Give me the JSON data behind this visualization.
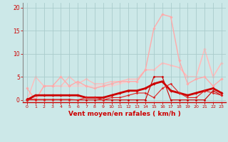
{
  "x": [
    0,
    1,
    2,
    3,
    4,
    5,
    6,
    7,
    8,
    9,
    10,
    11,
    12,
    13,
    14,
    15,
    16,
    17,
    18,
    19,
    20,
    21,
    22,
    23
  ],
  "series": [
    {
      "y": [
        0.0,
        0.0,
        0.0,
        0.0,
        0.0,
        0.0,
        0.0,
        0.5,
        0.5,
        0.0,
        0.5,
        0.5,
        1.0,
        1.5,
        1.5,
        0.5,
        2.5,
        3.5,
        1.5,
        0.5,
        0.5,
        2.0,
        1.5,
        1.0
      ],
      "color": "#dd2222",
      "lw": 0.8,
      "marker": "D",
      "ms": 1.5,
      "zorder": 6
    },
    {
      "y": [
        0.0,
        1.0,
        1.0,
        1.0,
        1.0,
        1.0,
        1.0,
        0.5,
        0.5,
        0.5,
        1.0,
        1.5,
        2.0,
        2.0,
        2.5,
        3.5,
        4.0,
        2.0,
        1.5,
        1.0,
        1.5,
        2.0,
        2.5,
        1.5
      ],
      "color": "#cc0000",
      "lw": 2.0,
      "marker": "D",
      "ms": 1.8,
      "zorder": 5
    },
    {
      "y": [
        0.2,
        0.1,
        0.1,
        0.1,
        0.1,
        0.1,
        0.0,
        0.0,
        0.0,
        0.0,
        0.0,
        0.0,
        0.0,
        0.0,
        0.0,
        5.0,
        5.0,
        0.0,
        0.0,
        0.0,
        0.0,
        0.0,
        2.0,
        1.0
      ],
      "color": "#cc0000",
      "lw": 0.8,
      "marker": "D",
      "ms": 1.5,
      "zorder": 4
    },
    {
      "y": [
        2.5,
        0.0,
        3.0,
        3.0,
        5.0,
        3.0,
        4.0,
        3.0,
        2.5,
        3.0,
        3.5,
        4.0,
        4.0,
        4.0,
        6.5,
        15.5,
        18.5,
        18.0,
        8.5,
        3.5,
        4.5,
        5.0,
        3.0,
        4.5
      ],
      "color": "#ffaaaa",
      "lw": 1.0,
      "marker": "D",
      "ms": 1.8,
      "zorder": 2
    },
    {
      "y": [
        0.0,
        5.0,
        3.0,
        3.0,
        3.0,
        5.0,
        3.5,
        4.5,
        3.5,
        3.5,
        4.0,
        4.0,
        4.5,
        4.5,
        6.5,
        6.5,
        8.0,
        7.5,
        7.0,
        5.0,
        5.0,
        11.0,
        5.0,
        8.0
      ],
      "color": "#ffbbbb",
      "lw": 1.0,
      "marker": "D",
      "ms": 1.8,
      "zorder": 1
    },
    {
      "y": [
        0.0,
        0.0,
        3.0,
        3.0,
        3.0,
        3.0,
        3.0,
        3.0,
        3.0,
        3.0,
        3.0,
        3.5,
        4.0,
        4.0,
        6.5,
        6.5,
        8.0,
        7.5,
        7.0,
        5.0,
        5.0,
        11.0,
        5.0,
        8.0
      ],
      "color": "#ffcccc",
      "lw": 1.0,
      "marker": "D",
      "ms": 1.5,
      "zorder": 0
    }
  ],
  "xlabel": "Vent moyen/en rafales ( km/h )",
  "ylim": [
    -0.5,
    21
  ],
  "yticks": [
    0,
    5,
    10,
    15,
    20
  ],
  "xticks": [
    0,
    1,
    2,
    3,
    4,
    5,
    6,
    7,
    8,
    9,
    10,
    11,
    12,
    13,
    14,
    15,
    16,
    17,
    18,
    19,
    20,
    21,
    22,
    23
  ],
  "bg_color": "#cce8e8",
  "grid_color": "#aacccc",
  "tick_color": "#cc0000",
  "label_color": "#cc0000",
  "spine_bottom_color": "#cc0000",
  "spine_left_color": "#888888"
}
